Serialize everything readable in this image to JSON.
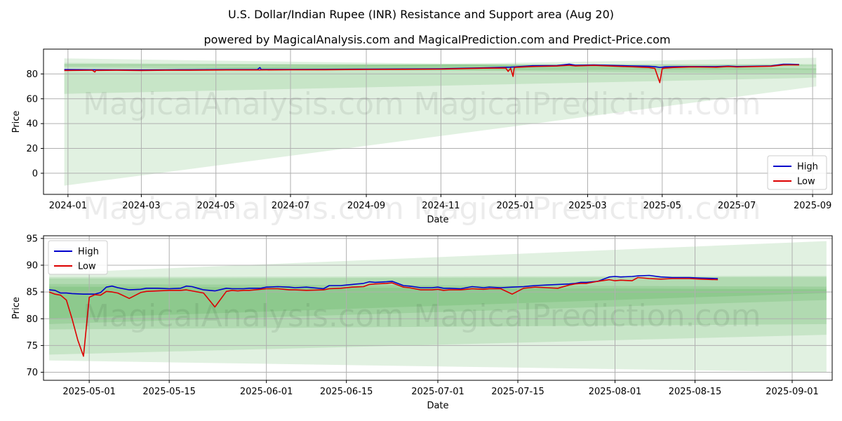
{
  "title_line1": "U.S. Dollar/Indian Rupee (INR) Resistance and Support area (Aug 20)",
  "title_line2": "powered by MagicalAnalysis.com and MagicalPrediction.com and Predict-Price.com",
  "watermarks": [
    "MagicalAnalysis.com",
    "MagicalPrediction.com"
  ],
  "colors": {
    "high": "#0000cc",
    "low": "#dd0000",
    "band": "#2e9a2e"
  },
  "chart_data": [
    {
      "type": "line",
      "xlabel": "Date",
      "ylabel": "Price",
      "xlim": [
        -20,
        625
      ],
      "ylim": [
        -17,
        100
      ],
      "x_ticks": [
        {
          "x": 0,
          "label": "2024-01"
        },
        {
          "x": 60,
          "label": "2024-03"
        },
        {
          "x": 121,
          "label": "2024-05"
        },
        {
          "x": 182,
          "label": "2024-07"
        },
        {
          "x": 244,
          "label": "2024-09"
        },
        {
          "x": 305,
          "label": "2024-11"
        },
        {
          "x": 366,
          "label": "2025-01"
        },
        {
          "x": 425,
          "label": "2025-03"
        },
        {
          "x": 486,
          "label": "2025-05"
        },
        {
          "x": 547,
          "label": "2025-07"
        },
        {
          "x": 609,
          "label": "2025-09"
        }
      ],
      "y_ticks": [
        0,
        20,
        40,
        60,
        80
      ],
      "legend": [
        "High",
        "Low"
      ],
      "legend_position": "lower-right",
      "series": [
        {
          "name": "High",
          "x": [
            -3,
            20,
            40,
            60,
            80,
            100,
            130,
            155,
            157,
            158,
            182,
            210,
            244,
            275,
            305,
            340,
            362,
            364,
            366,
            368,
            380,
            400,
            410,
            415,
            430,
            460,
            475,
            480,
            484,
            486,
            488,
            495,
            510,
            530,
            540,
            547,
            560,
            575,
            585,
            590,
            598
          ],
          "y": [
            83.5,
            83.4,
            83.3,
            83.2,
            83.3,
            83.4,
            83.5,
            83.6,
            85.2,
            83.6,
            83.6,
            83.7,
            83.9,
            84.0,
            84.2,
            84.9,
            85.5,
            85.6,
            85.7,
            85.8,
            86.6,
            86.8,
            87.9,
            87.0,
            87.3,
            86.5,
            86.2,
            85.8,
            85.3,
            85.4,
            85.7,
            85.8,
            86.0,
            85.9,
            86.3,
            86.0,
            86.2,
            86.5,
            87.8,
            87.8,
            87.6
          ]
        },
        {
          "name": "Low",
          "x": [
            -3,
            20,
            22,
            23,
            24,
            40,
            60,
            80,
            100,
            130,
            155,
            182,
            210,
            244,
            275,
            305,
            340,
            358,
            360,
            362,
            364,
            365,
            366,
            368,
            380,
            400,
            410,
            415,
            430,
            460,
            475,
            480,
            484,
            486,
            488,
            495,
            510,
            530,
            540,
            547,
            560,
            575,
            585,
            590,
            598
          ],
          "y": [
            82.8,
            83.0,
            81.5,
            83.0,
            82.9,
            83.0,
            82.8,
            83.0,
            83.0,
            83.2,
            83.2,
            83.3,
            83.4,
            83.6,
            83.7,
            83.9,
            84.6,
            84.8,
            82.0,
            84.5,
            78.0,
            85.0,
            85.3,
            85.4,
            86.0,
            86.4,
            87.0,
            86.5,
            86.9,
            85.8,
            85.2,
            84.5,
            73.0,
            84.3,
            84.7,
            85.2,
            85.7,
            85.4,
            86.0,
            85.6,
            85.9,
            86.2,
            87.2,
            87.3,
            87.2
          ]
        }
      ],
      "bands": [
        {
          "x": [
            -3,
            612
          ],
          "upper": [
            92.5,
            84.0
          ],
          "lower": [
            -10.0,
            70.0
          ]
        },
        {
          "x": [
            -3,
            612
          ],
          "upper": [
            89.0,
            85.0
          ],
          "lower": [
            64.0,
            77.0
          ]
        },
        {
          "x": [
            -3,
            612
          ],
          "upper": [
            88.0,
            87.5
          ],
          "lower": [
            85.5,
            80.0
          ]
        },
        {
          "x": [
            -3,
            612
          ],
          "upper": [
            87.5,
            88.0
          ],
          "lower": [
            87.0,
            86.0
          ]
        },
        {
          "x": [
            -3,
            612
          ],
          "upper": [
            83.0,
            93.0
          ],
          "lower": [
            82.5,
            83.5
          ]
        }
      ]
    },
    {
      "type": "line",
      "xlabel": "Date",
      "ylabel": "Price",
      "xlim": [
        -8,
        130
      ],
      "ylim": [
        68.5,
        95.5
      ],
      "x_ticks": [
        {
          "x": 0,
          "label": "2025-05-01"
        },
        {
          "x": 14,
          "label": "2025-05-15"
        },
        {
          "x": 31,
          "label": "2025-06-01"
        },
        {
          "x": 45,
          "label": "2025-06-15"
        },
        {
          "x": 61,
          "label": "2025-07-01"
        },
        {
          "x": 75,
          "label": "2025-07-15"
        },
        {
          "x": 92,
          "label": "2025-08-01"
        },
        {
          "x": 106,
          "label": "2025-08-15"
        },
        {
          "x": 123,
          "label": "2025-09-01"
        }
      ],
      "y_ticks": [
        70,
        75,
        80,
        85,
        90,
        95
      ],
      "legend": [
        "High",
        "Low"
      ],
      "legend_position": "upper-left",
      "series": [
        {
          "name": "High",
          "x": [
            -7,
            -6,
            -5,
            -4,
            -3,
            -1,
            1,
            2,
            3,
            4,
            5,
            7,
            9,
            10,
            12,
            14,
            16,
            17,
            18,
            19,
            20,
            22,
            24,
            25,
            27,
            28,
            30,
            31,
            33,
            35,
            36,
            38,
            41,
            42,
            44,
            45,
            46,
            48,
            49,
            50,
            52,
            53,
            55,
            56,
            58,
            60,
            61,
            62,
            63,
            65,
            66,
            67,
            69,
            70,
            72,
            74,
            76,
            77,
            78,
            80,
            82,
            84,
            85,
            86,
            87,
            89,
            91,
            92,
            93,
            95,
            96,
            98,
            100,
            102,
            105,
            107,
            110
          ],
          "y": [
            85.4,
            85.3,
            84.8,
            84.8,
            84.7,
            84.6,
            84.6,
            84.9,
            85.9,
            86.1,
            85.8,
            85.4,
            85.5,
            85.7,
            85.7,
            85.6,
            85.7,
            86.1,
            86.0,
            85.7,
            85.4,
            85.2,
            85.7,
            85.6,
            85.6,
            85.7,
            85.7,
            85.9,
            86.0,
            85.9,
            85.8,
            85.9,
            85.6,
            86.2,
            86.2,
            86.3,
            86.4,
            86.6,
            86.9,
            86.8,
            86.9,
            87.0,
            86.2,
            86.1,
            85.8,
            85.8,
            85.9,
            85.7,
            85.7,
            85.6,
            85.8,
            86.0,
            85.8,
            85.9,
            85.8,
            85.9,
            86.0,
            86.1,
            86.2,
            86.3,
            86.4,
            86.5,
            86.6,
            86.8,
            86.8,
            87.0,
            87.8,
            87.9,
            87.8,
            87.9,
            88.0,
            88.1,
            87.8,
            87.7,
            87.7,
            87.6,
            87.5
          ]
        },
        {
          "name": "Low",
          "x": [
            -7,
            -6,
            -5,
            -4,
            -3,
            -2,
            -1,
            0,
            1,
            2,
            3,
            4,
            5,
            7,
            9,
            10,
            12,
            14,
            16,
            17,
            18,
            19,
            20,
            22,
            24,
            25,
            26,
            27,
            28,
            30,
            31,
            33,
            35,
            36,
            38,
            41,
            42,
            44,
            45,
            46,
            48,
            49,
            50,
            52,
            53,
            55,
            56,
            58,
            60,
            61,
            62,
            63,
            65,
            66,
            67,
            69,
            70,
            72,
            74,
            76,
            77,
            78,
            80,
            82,
            84,
            85,
            86,
            87,
            89,
            91,
            92,
            93,
            95,
            96,
            98,
            100,
            102,
            105,
            107,
            110
          ],
          "y": [
            85.0,
            84.6,
            84.4,
            83.5,
            80.0,
            76.0,
            73.0,
            84.0,
            84.5,
            84.4,
            85.1,
            85.0,
            84.8,
            83.8,
            84.9,
            85.1,
            85.2,
            85.3,
            85.3,
            85.4,
            85.2,
            85.0,
            84.8,
            82.2,
            85.1,
            85.3,
            85.2,
            85.3,
            85.3,
            85.5,
            85.6,
            85.6,
            85.4,
            85.4,
            85.3,
            85.4,
            85.6,
            85.7,
            85.8,
            85.9,
            86.0,
            86.4,
            86.5,
            86.6,
            86.7,
            85.9,
            85.8,
            85.4,
            85.4,
            85.5,
            85.3,
            85.4,
            85.4,
            85.5,
            85.6,
            85.5,
            85.6,
            85.6,
            84.6,
            85.7,
            85.8,
            85.9,
            85.8,
            85.7,
            86.3,
            86.5,
            86.6,
            86.6,
            87.0,
            87.3,
            87.1,
            87.2,
            87.1,
            87.7,
            87.5,
            87.4,
            87.5,
            87.5,
            87.4,
            87.3
          ]
        }
      ],
      "bands": [
        {
          "x": [
            -7,
            129
          ],
          "upper": [
            88.5,
            94.5
          ],
          "lower": [
            72.2,
            70.0
          ]
        },
        {
          "x": [
            -7,
            129
          ],
          "upper": [
            87.8,
            88.0
          ],
          "lower": [
            73.3,
            77.0
          ]
        },
        {
          "x": [
            -7,
            129
          ],
          "upper": [
            87.5,
            87.8
          ],
          "lower": [
            78.0,
            79.0
          ]
        },
        {
          "x": [
            -7,
            129
          ],
          "upper": [
            86.5,
            86.0
          ],
          "lower": [
            79.0,
            83.5
          ]
        },
        {
          "x": [
            -7,
            129
          ],
          "upper": [
            86.0,
            85.5
          ],
          "lower": [
            80.0,
            84.8
          ]
        }
      ]
    }
  ]
}
